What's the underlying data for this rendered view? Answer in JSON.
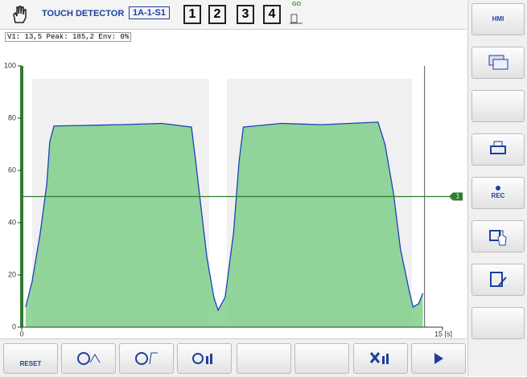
{
  "header": {
    "title": "TOUCH DETECTOR",
    "id": "1A-1-S1",
    "channels": [
      "1",
      "2",
      "3",
      "4"
    ],
    "go": "GO"
  },
  "status": "V1: 13,5  Peak: 185,2  Env: 0%",
  "sidebar": {
    "hmi": "HMI",
    "rec": "REC"
  },
  "toolbar": {
    "reset": "RESET"
  },
  "chart_data": {
    "type": "line",
    "x": [
      0.14,
      0.37,
      0.66,
      0.89,
      1.0,
      1.15,
      2.1,
      3.5,
      5.0,
      6.05,
      6.2,
      6.4,
      6.6,
      6.85,
      7.0,
      7.25,
      7.55,
      7.75,
      7.9,
      9.25,
      10.7,
      12.7,
      12.95,
      13.25,
      13.5,
      13.8,
      13.95,
      14.15,
      14.3
    ],
    "series": [
      {
        "color": "#1f3fbf",
        "values": [
          7.7,
          17.5,
          36,
          54.5,
          71,
          77,
          77.2,
          77.5,
          78,
          76.6,
          63.7,
          45,
          26.8,
          11.4,
          6.5,
          11.4,
          36,
          63.7,
          76.6,
          78,
          77.5,
          78.5,
          70,
          51.4,
          30,
          14.5,
          7.7,
          9,
          13
        ]
      }
    ],
    "fill_color": "#7fcf8a",
    "threshold": {
      "value": 50,
      "label": "1",
      "color": "#2e7d32"
    },
    "cursor_x": 14.36,
    "xlim": [
      0,
      15
    ],
    "ylim": [
      0,
      100
    ],
    "xticks": [
      0,
      {
        "value": 15,
        "label": "15 [s]"
      }
    ],
    "yticks": [
      0,
      20,
      40,
      60,
      80,
      100
    ]
  }
}
